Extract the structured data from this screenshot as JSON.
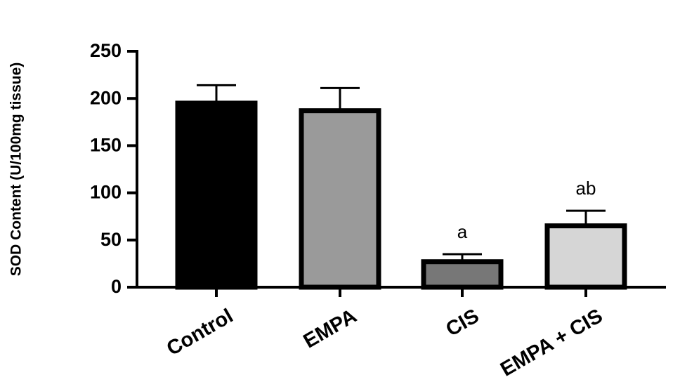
{
  "chart_data": {
    "type": "bar",
    "y_label": "SOD Content (U/100mg tissue)",
    "categories": [
      "Control",
      "EMPA",
      "CIS",
      "EMPA + CIS"
    ],
    "values": [
      195,
      187,
      27,
      65
    ],
    "errors": [
      19,
      24,
      8,
      16
    ],
    "colors": [
      "#000000",
      "#9a9a9a",
      "#777777",
      "#d6d6d6"
    ],
    "annotations": [
      null,
      null,
      "a",
      "ab"
    ],
    "ylim": [
      0,
      250
    ],
    "yticks": [
      0,
      50,
      100,
      150,
      200,
      250
    ]
  }
}
